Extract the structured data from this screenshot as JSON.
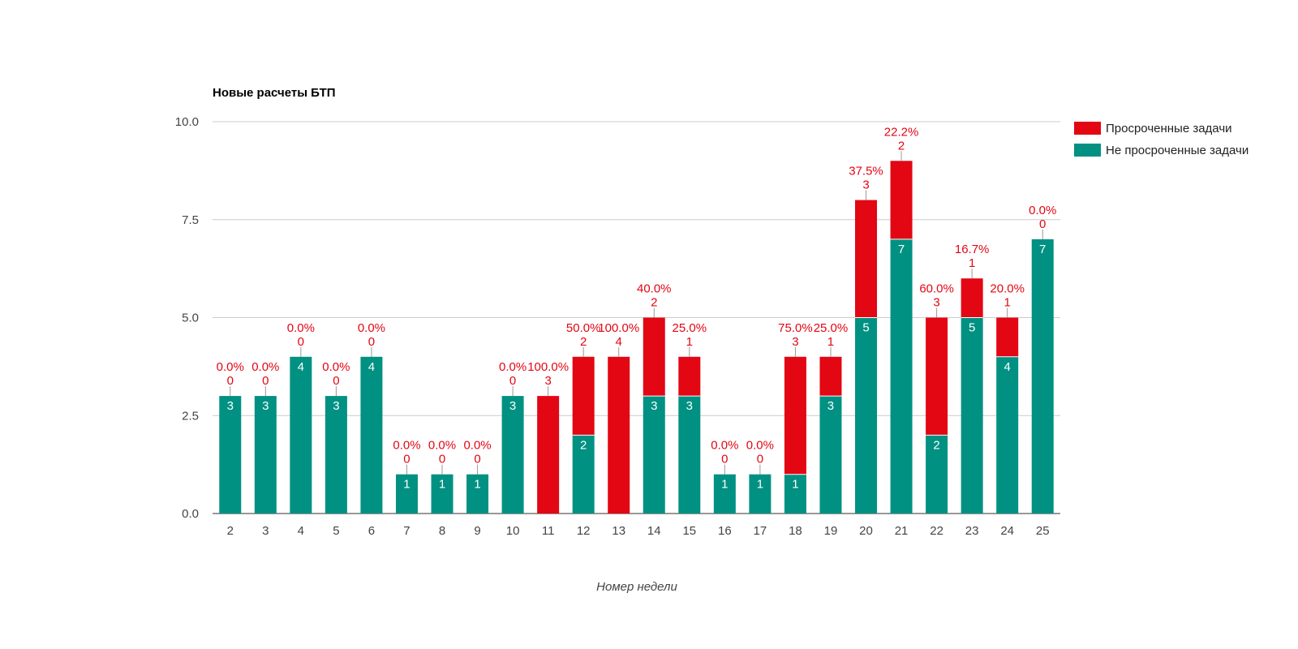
{
  "chart_data": {
    "type": "bar",
    "stacked": true,
    "title": "Новые расчеты БТП",
    "xlabel": "Номер недели",
    "ylabel": "",
    "ylim": [
      0,
      10
    ],
    "yticks": [
      "0.0",
      "2.5",
      "5.0",
      "7.5",
      "10.0"
    ],
    "ytick_values": [
      0,
      2.5,
      5,
      7.5,
      10
    ],
    "grid": true,
    "legend_position": "right",
    "categories": [
      "2",
      "3",
      "4",
      "5",
      "6",
      "7",
      "8",
      "9",
      "10",
      "11",
      "12",
      "13",
      "14",
      "15",
      "16",
      "17",
      "18",
      "19",
      "20",
      "21",
      "22",
      "23",
      "24",
      "25"
    ],
    "series": [
      {
        "name": "Не просроченные задачи",
        "color": "#009182",
        "values": [
          3,
          3,
          4,
          3,
          4,
          1,
          1,
          1,
          3,
          0,
          2,
          0,
          3,
          3,
          1,
          1,
          1,
          3,
          5,
          7,
          2,
          5,
          4,
          7
        ]
      },
      {
        "name": "Просроченные задачи",
        "color": "#e30613",
        "values": [
          0,
          0,
          0,
          0,
          0,
          0,
          0,
          0,
          0,
          3,
          2,
          4,
          2,
          1,
          0,
          0,
          3,
          1,
          3,
          2,
          3,
          1,
          1,
          0
        ]
      }
    ],
    "overdue_percent_labels": [
      "0.0%",
      "0.0%",
      "0.0%",
      "0.0%",
      "0.0%",
      "0.0%",
      "0.0%",
      "0.0%",
      "0.0%",
      "100.0%",
      "50.0%",
      "100.0%",
      "40.0%",
      "25.0%",
      "0.0%",
      "0.0%",
      "75.0%",
      "25.0%",
      "37.5%",
      "22.2%",
      "60.0%",
      "16.7%",
      "20.0%",
      "0.0%"
    ],
    "legend": [
      {
        "name": "Просроченные задачи",
        "color": "#e30613"
      },
      {
        "name": "Не просроченные задачи",
        "color": "#009182"
      }
    ]
  }
}
